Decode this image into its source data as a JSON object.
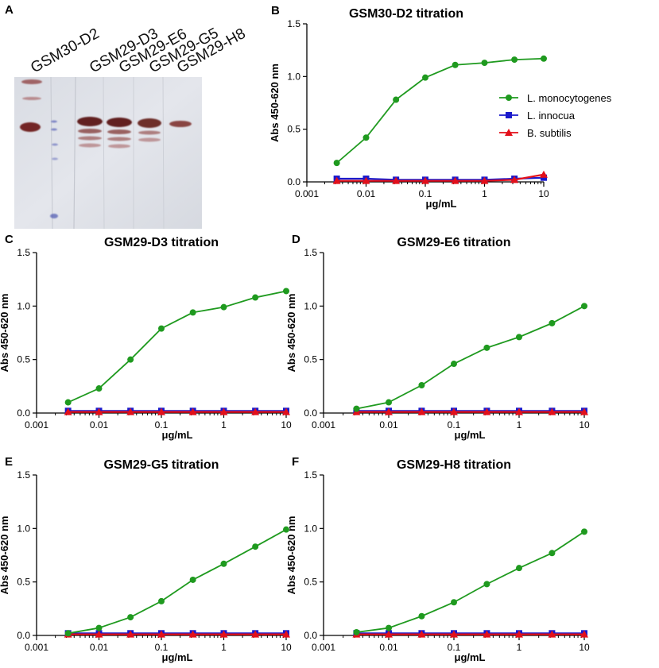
{
  "colors": {
    "green": "#1f9a1f",
    "blue": "#1a1acc",
    "red": "#e3101a"
  },
  "blot": {
    "panel_letter": "A",
    "lane_labels": [
      "GSM30-D2",
      "GSM29-D3",
      "GSM29-E6",
      "GSM29-G5",
      "GSM29-H8"
    ]
  },
  "legend": {
    "entries": [
      "L. monocytogenes",
      "L. innocua",
      "B. subtilis"
    ]
  },
  "chart_data": [
    {
      "panel_letter": "B",
      "type": "line",
      "title": "GSM30-D2 titration",
      "xlabel": "μg/mL",
      "ylabel": "Abs 450-620 nm",
      "xscale": "log",
      "xlim": [
        0.001,
        10
      ],
      "ylim": [
        0,
        1.5
      ],
      "xticks": [
        "0.001",
        "0.01",
        "0.1",
        "1",
        "10"
      ],
      "yticks": [
        "0.0",
        "0.5",
        "1.0",
        "1.5"
      ],
      "x": [
        0.0032,
        0.01,
        0.032,
        0.1,
        0.32,
        1,
        3.2,
        10
      ],
      "series": [
        {
          "name": "L. monocytogenes",
          "marker": "circle",
          "values": [
            0.18,
            0.42,
            0.78,
            0.99,
            1.11,
            1.13,
            1.16,
            1.17
          ]
        },
        {
          "name": "L. innocua",
          "marker": "square",
          "values": [
            0.03,
            0.03,
            0.02,
            0.02,
            0.02,
            0.02,
            0.03,
            0.04
          ]
        },
        {
          "name": "B. subtilis",
          "marker": "triangle",
          "values": [
            0.01,
            0.01,
            0.01,
            0.01,
            0.01,
            0.01,
            0.02,
            0.07
          ]
        }
      ]
    },
    {
      "panel_letter": "C",
      "type": "line",
      "title": "GSM29-D3 titration",
      "xlabel": "μg/mL",
      "ylabel": "Abs 450-620 nm",
      "xscale": "log",
      "xlim": [
        0.001,
        10
      ],
      "ylim": [
        0,
        1.5
      ],
      "xticks": [
        "0.001",
        "0.01",
        "0.1",
        "1",
        "10"
      ],
      "yticks": [
        "0.0",
        "0.5",
        "1.0",
        "1.5"
      ],
      "x": [
        0.0032,
        0.01,
        0.032,
        0.1,
        0.32,
        1,
        3.2,
        10
      ],
      "series": [
        {
          "name": "L. monocytogenes",
          "marker": "circle",
          "values": [
            0.1,
            0.23,
            0.5,
            0.79,
            0.94,
            0.99,
            1.08,
            1.14
          ]
        },
        {
          "name": "L. innocua",
          "marker": "square",
          "values": [
            0.02,
            0.02,
            0.02,
            0.02,
            0.02,
            0.02,
            0.02,
            0.02
          ]
        },
        {
          "name": "B. subtilis",
          "marker": "triangle",
          "values": [
            0.01,
            0.01,
            0.01,
            0.01,
            0.01,
            0.01,
            0.01,
            0.01
          ]
        }
      ]
    },
    {
      "panel_letter": "D",
      "type": "line",
      "title": "GSM29-E6 titration",
      "xlabel": "μg/mL",
      "ylabel": "Abs 450-620 nm",
      "xscale": "log",
      "xlim": [
        0.001,
        10
      ],
      "ylim": [
        0,
        1.5
      ],
      "xticks": [
        "0.001",
        "0.01",
        "0.1",
        "1",
        "10"
      ],
      "yticks": [
        "0.0",
        "0.5",
        "1.0",
        "1.5"
      ],
      "x": [
        0.0032,
        0.01,
        0.032,
        0.1,
        0.32,
        1,
        3.2,
        10
      ],
      "series": [
        {
          "name": "L. monocytogenes",
          "marker": "circle",
          "values": [
            0.04,
            0.1,
            0.26,
            0.46,
            0.61,
            0.71,
            0.84,
            1.0
          ]
        },
        {
          "name": "L. innocua",
          "marker": "square",
          "values": [
            0.02,
            0.02,
            0.02,
            0.02,
            0.02,
            0.02,
            0.02,
            0.02
          ]
        },
        {
          "name": "B. subtilis",
          "marker": "triangle",
          "values": [
            0.01,
            0.01,
            0.01,
            0.01,
            0.01,
            0.01,
            0.01,
            0.01
          ]
        }
      ]
    },
    {
      "panel_letter": "E",
      "type": "line",
      "title": "GSM29-G5 titration",
      "xlabel": "μg/mL",
      "ylabel": "Abs 450-620 nm",
      "xscale": "log",
      "xlim": [
        0.001,
        10
      ],
      "ylim": [
        0,
        1.5
      ],
      "xticks": [
        "0.001",
        "0.01",
        "0.1",
        "1",
        "10"
      ],
      "yticks": [
        "0.0",
        "0.5",
        "1.0",
        "1.5"
      ],
      "x": [
        0.0032,
        0.01,
        0.032,
        0.1,
        0.32,
        1,
        3.2,
        10
      ],
      "series": [
        {
          "name": "L. monocytogenes",
          "marker": "circle",
          "values": [
            0.02,
            0.07,
            0.17,
            0.32,
            0.52,
            0.67,
            0.83,
            0.99
          ]
        },
        {
          "name": "L. innocua",
          "marker": "square",
          "values": [
            0.02,
            0.02,
            0.02,
            0.02,
            0.02,
            0.02,
            0.02,
            0.02
          ]
        },
        {
          "name": "B. subtilis",
          "marker": "triangle",
          "values": [
            0.01,
            0.01,
            0.01,
            0.01,
            0.01,
            0.01,
            0.01,
            0.01
          ]
        }
      ]
    },
    {
      "panel_letter": "F",
      "type": "line",
      "title": "GSM29-H8 titration",
      "xlabel": "μg/mL",
      "ylabel": "Abs 450-620 nm",
      "xscale": "log",
      "xlim": [
        0.001,
        10
      ],
      "ylim": [
        0,
        1.5
      ],
      "xticks": [
        "0.001",
        "0.01",
        "0.1",
        "1",
        "10"
      ],
      "yticks": [
        "0.0",
        "0.5",
        "1.0",
        "1.5"
      ],
      "x": [
        0.0032,
        0.01,
        0.032,
        0.1,
        0.32,
        1,
        3.2,
        10
      ],
      "series": [
        {
          "name": "L. monocytogenes",
          "marker": "circle",
          "values": [
            0.03,
            0.07,
            0.18,
            0.31,
            0.48,
            0.63,
            0.77,
            0.97
          ]
        },
        {
          "name": "L. innocua",
          "marker": "square",
          "values": [
            0.02,
            0.02,
            0.02,
            0.02,
            0.02,
            0.02,
            0.02,
            0.02
          ]
        },
        {
          "name": "B. subtilis",
          "marker": "triangle",
          "values": [
            0.01,
            0.01,
            0.01,
            0.01,
            0.01,
            0.01,
            0.01,
            0.01
          ]
        }
      ]
    }
  ]
}
